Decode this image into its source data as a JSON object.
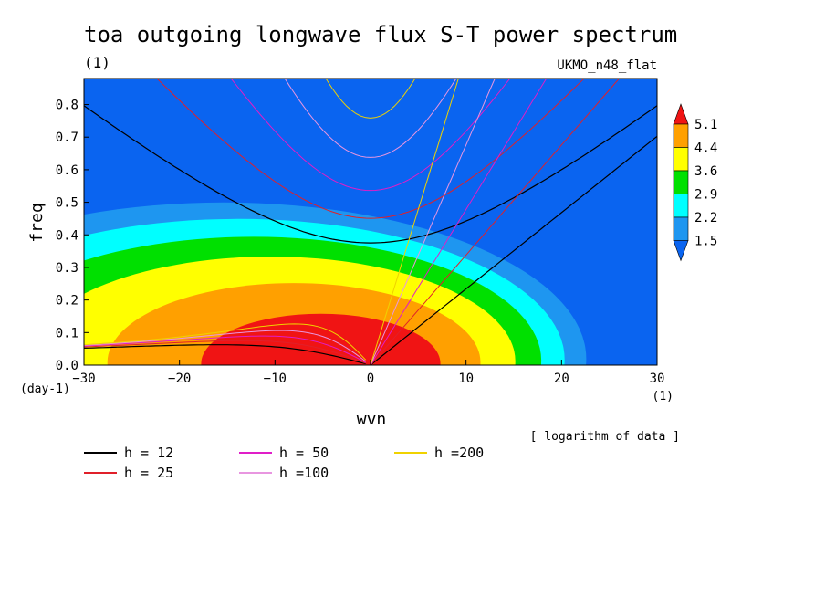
{
  "chart_data": {
    "type": "heatmap",
    "title": "toa outgoing longwave flux S-T power spectrum",
    "subtitle_left": "(1)",
    "subtitle_right": "UKMO_n48_flat",
    "xlabel": "wvn",
    "ylabel": "freq",
    "x_unit": "(1)",
    "y_unit": "(day-1)",
    "xlim": [
      -30,
      30
    ],
    "ylim": [
      0,
      0.88
    ],
    "x_ticks": [
      -30,
      -20,
      -10,
      0,
      10,
      20,
      30
    ],
    "y_ticks": [
      0.0,
      0.1,
      0.2,
      0.3,
      0.4,
      0.5,
      0.6,
      0.7,
      0.8
    ],
    "note": "[ logarithm of data ]",
    "colorbar": {
      "levels": [
        1.5,
        2.2,
        2.9,
        3.6,
        4.4,
        5.1
      ],
      "colors": [
        "#0a64f0",
        "#1e96f0",
        "#00ffff",
        "#00e000",
        "#ffff00",
        "#ffa000",
        "#f01414"
      ]
    },
    "field": {
      "peak": {
        "wvn": -2,
        "freq": 0.03,
        "value": 5.5
      },
      "background_value": 1.2
    },
    "dispersion_curves": [
      {
        "label": "h = 12",
        "h": 12,
        "color": "#000000"
      },
      {
        "label": "h = 25",
        "h": 25,
        "color": "#e0202a"
      },
      {
        "label": "h = 50",
        "h": 50,
        "color": "#e01ec8"
      },
      {
        "label": "h =100",
        "h": 100,
        "color": "#e896e0"
      },
      {
        "label": "h =200",
        "h": 200,
        "color": "#f0d200"
      }
    ]
  }
}
